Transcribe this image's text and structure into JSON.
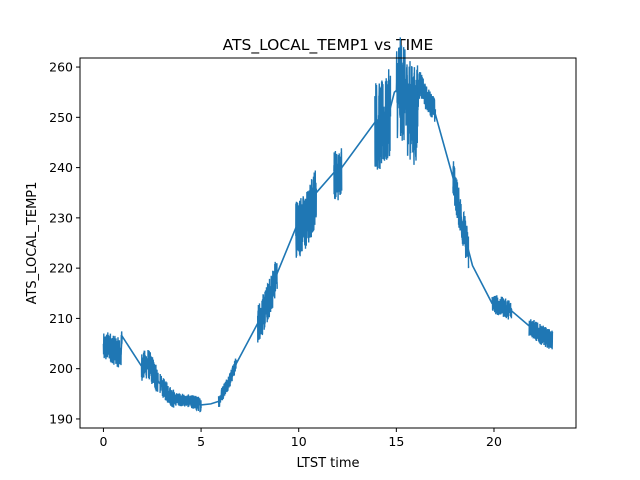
{
  "chart_data": {
    "type": "line",
    "title": "ATS_LOCAL_TEMP1 vs TIME",
    "xlabel": "LTST time",
    "ylabel": "ATS_LOCAL_TEMP1",
    "xlim": [
      -1.2,
      24.2
    ],
    "ylim": [
      188.2,
      261.8
    ],
    "xticks": [
      0,
      5,
      10,
      15,
      20
    ],
    "yticks": [
      190,
      200,
      210,
      220,
      230,
      240,
      250,
      260
    ],
    "grid": false,
    "legend": "none",
    "series": [
      {
        "color": "#1f77b4",
        "segments": [
          {
            "x0": 0.0,
            "x1": 0.95,
            "base": 204.0,
            "amp": 3.0
          },
          {
            "x0": 1.95,
            "x1": 2.8,
            "base": 200.0,
            "amp": 3.0
          },
          {
            "x0": 2.9,
            "x1": 3.6,
            "base": 196.0,
            "amp": 2.0
          },
          {
            "x0": 3.4,
            "x1": 4.8,
            "base": 193.8,
            "amp": 1.3
          },
          {
            "x0": 4.5,
            "x1": 5.0,
            "base": 193.0,
            "amp": 1.5
          },
          {
            "x0": 5.9,
            "x1": 6.8,
            "base": 196.0,
            "amp": 1.5
          },
          {
            "x0": 7.9,
            "x1": 8.9,
            "base": 213.0,
            "amp": 4.0
          },
          {
            "x0": 9.85,
            "x1": 10.9,
            "base": 229.0,
            "amp": 6.0
          },
          {
            "x0": 11.8,
            "x1": 12.2,
            "base": 238.0,
            "amp": 5.0
          },
          {
            "x0": 13.9,
            "x1": 14.7,
            "base": 246.0,
            "amp": 9.0
          },
          {
            "x0": 15.0,
            "x1": 16.1,
            "base": 245.0,
            "amp": 10.0
          },
          {
            "x0": 16.1,
            "x1": 17.0,
            "base": 254.0,
            "amp": 2.5
          },
          {
            "x0": 17.9,
            "x1": 18.7,
            "base": 229.0,
            "amp": 4.0
          },
          {
            "x0": 19.9,
            "x1": 20.9,
            "base": 212.5,
            "amp": 2.0
          },
          {
            "x0": 21.8,
            "x1": 23.0,
            "base": 206.5,
            "amp": 2.0
          }
        ],
        "x": [
          0.0,
          0.3,
          0.6,
          0.9,
          0.95,
          1.95,
          2.3,
          2.6,
          2.8,
          3.2,
          3.6,
          4.0,
          4.5,
          5.0,
          5.5,
          5.9,
          6.2,
          6.5,
          6.8,
          7.9,
          8.2,
          8.5,
          8.9,
          9.85,
          10.2,
          10.5,
          10.9,
          11.8,
          12.0,
          12.2,
          13.9,
          14.1,
          14.5,
          14.9,
          15.2,
          15.6,
          16.0,
          16.2,
          16.5,
          16.9,
          17.9,
          18.2,
          18.6,
          18.9,
          19.9,
          20.3,
          20.9,
          21.8,
          22.3,
          22.8,
          23.0
        ],
        "y": [
          204.0,
          204.5,
          203.5,
          203.0,
          206.5,
          200.5,
          201.0,
          199.0,
          197.5,
          195.5,
          194.0,
          193.8,
          193.5,
          192.8,
          193.0,
          193.5,
          196.0,
          198.0,
          201.0,
          209.0,
          211.0,
          214.0,
          219.0,
          228.0,
          228.5,
          230.0,
          235.0,
          239.0,
          238.0,
          240.0,
          249.0,
          248.0,
          249.0,
          255.0,
          256.0,
          252.0,
          250.0,
          257.0,
          254.0,
          252.0,
          238.0,
          232.0,
          225.0,
          220.5,
          213.0,
          212.5,
          211.5,
          208.5,
          207.0,
          206.0,
          205.5
        ]
      }
    ]
  }
}
